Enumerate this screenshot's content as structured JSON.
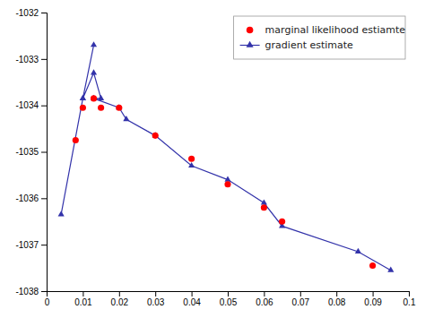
{
  "chart_data": {
    "type": "line",
    "series": [
      {
        "name": "marginal likelihood estiamte",
        "type": "scatter",
        "marker": "circle",
        "color": "#ff0000",
        "x": [
          0.008,
          0.01,
          0.013,
          0.015,
          0.02,
          0.03,
          0.04,
          0.05,
          0.06,
          0.065,
          0.09
        ],
        "values": [
          -1034.75,
          -1034.05,
          -1033.85,
          -1034.05,
          -1034.05,
          -1034.65,
          -1035.15,
          -1035.7,
          -1036.2,
          -1036.5,
          -1037.45
        ]
      },
      {
        "name": "gradient estimate",
        "type": "line",
        "marker": "triangle",
        "color": "#3333aa",
        "x": [
          0.004,
          0.01,
          0.013,
          0.01,
          0.013,
          0.015,
          0.013,
          0.02,
          0.022,
          0.03,
          0.04,
          0.05,
          0.06,
          0.065,
          0.086,
          0.095
        ],
        "values": [
          -1036.35,
          -1033.85,
          -1032.7,
          -1033.85,
          -1033.3,
          -1033.85,
          -1033.85,
          -1034.05,
          -1034.3,
          -1034.65,
          -1035.3,
          -1035.6,
          -1036.1,
          -1036.6,
          -1037.15,
          -1037.55
        ]
      }
    ],
    "xlim": [
      0,
      0.1
    ],
    "ylim": [
      -1038,
      -1032
    ],
    "xticks": [
      0,
      0.01,
      0.02,
      0.03,
      0.04,
      0.05,
      0.06,
      0.07,
      0.08,
      0.09,
      0.1
    ],
    "yticks": [
      -1038,
      -1037,
      -1036,
      -1035,
      -1034,
      -1033,
      -1032
    ],
    "legend": "upper right"
  }
}
